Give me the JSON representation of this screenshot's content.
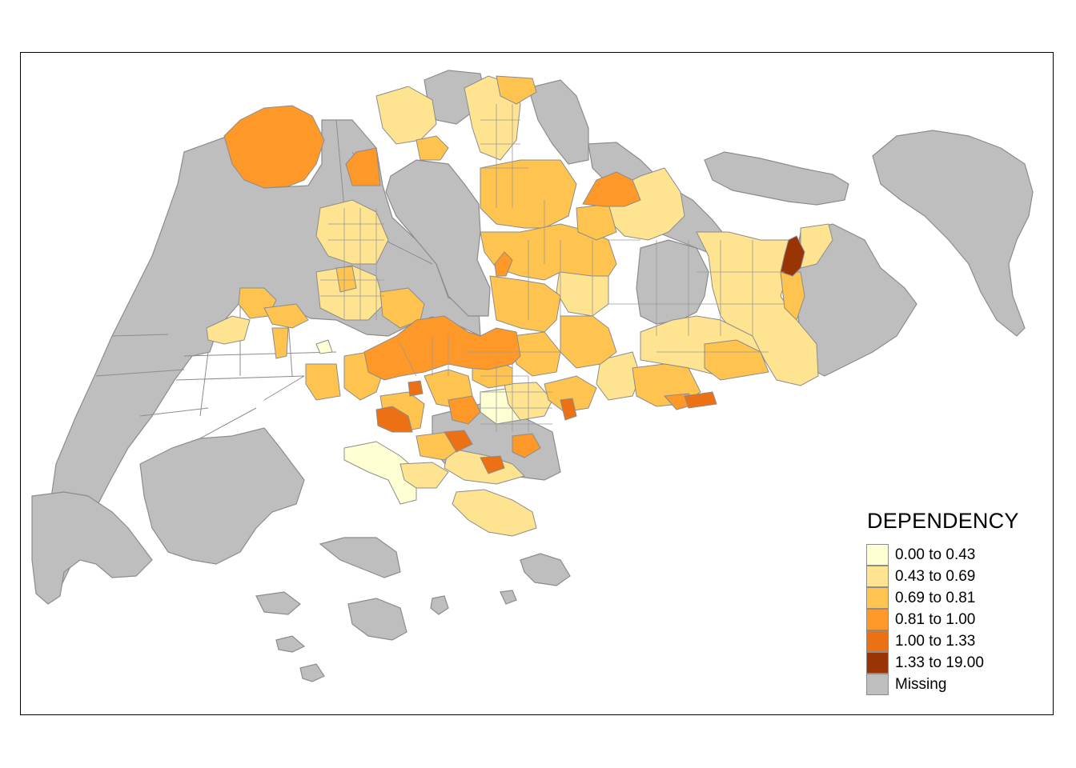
{
  "legend": {
    "title": "DEPENDENCY",
    "items": [
      {
        "label": "0.00 to 0.43",
        "color": "#ffffd4"
      },
      {
        "label": "0.43 to 0.69",
        "color": "#fee391"
      },
      {
        "label": "0.69 to 0.81",
        "color": "#fec44f"
      },
      {
        "label": "0.81 to 1.00",
        "color": "#fe9929"
      },
      {
        "label": "1.00 to 1.33",
        "color": "#ec7014"
      },
      {
        "label": "1.33 to 19.00",
        "color": "#993404"
      },
      {
        "label": "Missing",
        "color": "#bebebe"
      }
    ]
  }
}
